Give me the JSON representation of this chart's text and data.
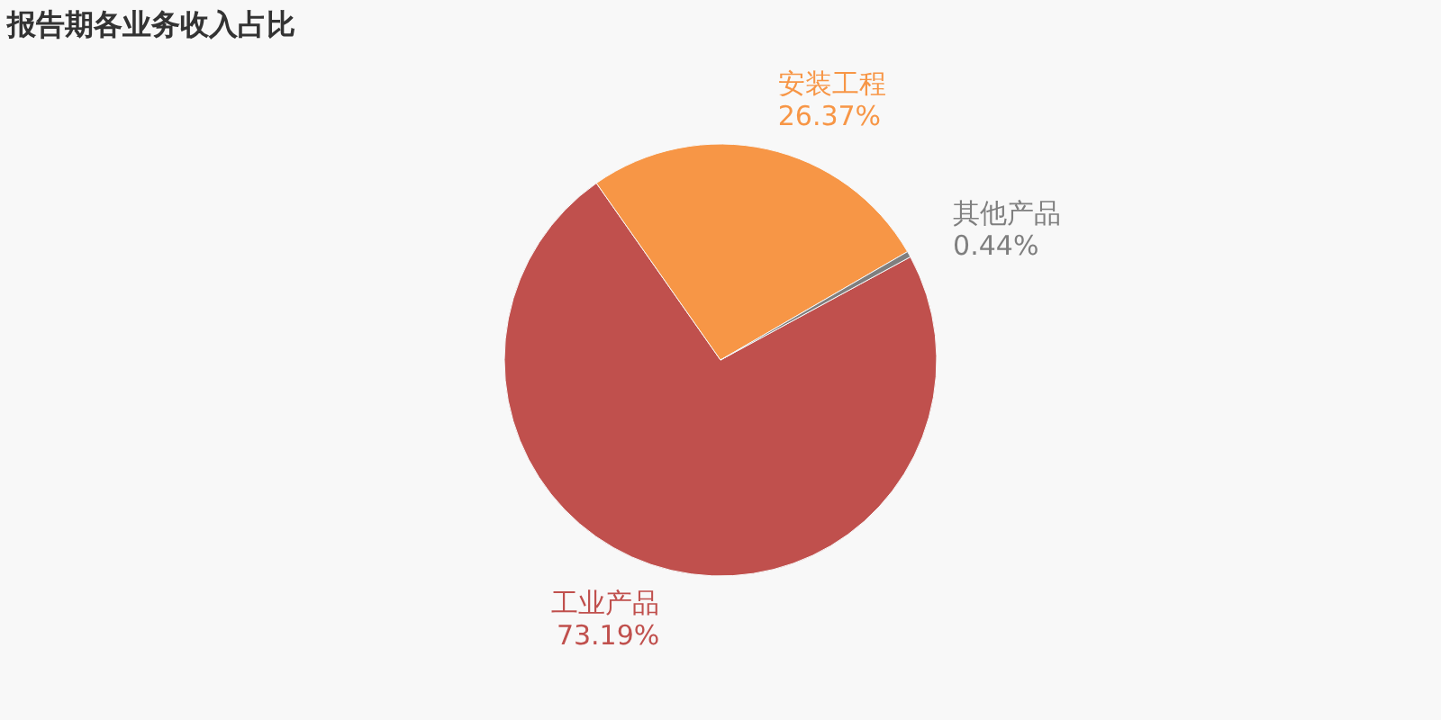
{
  "chart_data": {
    "type": "pie",
    "title": "报告期各业务收入占比",
    "categories": [
      "工业产品",
      "安装工程",
      "其他产品"
    ],
    "values": [
      73.19,
      26.37,
      0.44
    ],
    "value_labels": [
      "73.19%",
      "26.37%",
      "0.44%"
    ],
    "colors": [
      "#c0504d",
      "#f79646",
      "#7f7f7f"
    ]
  }
}
